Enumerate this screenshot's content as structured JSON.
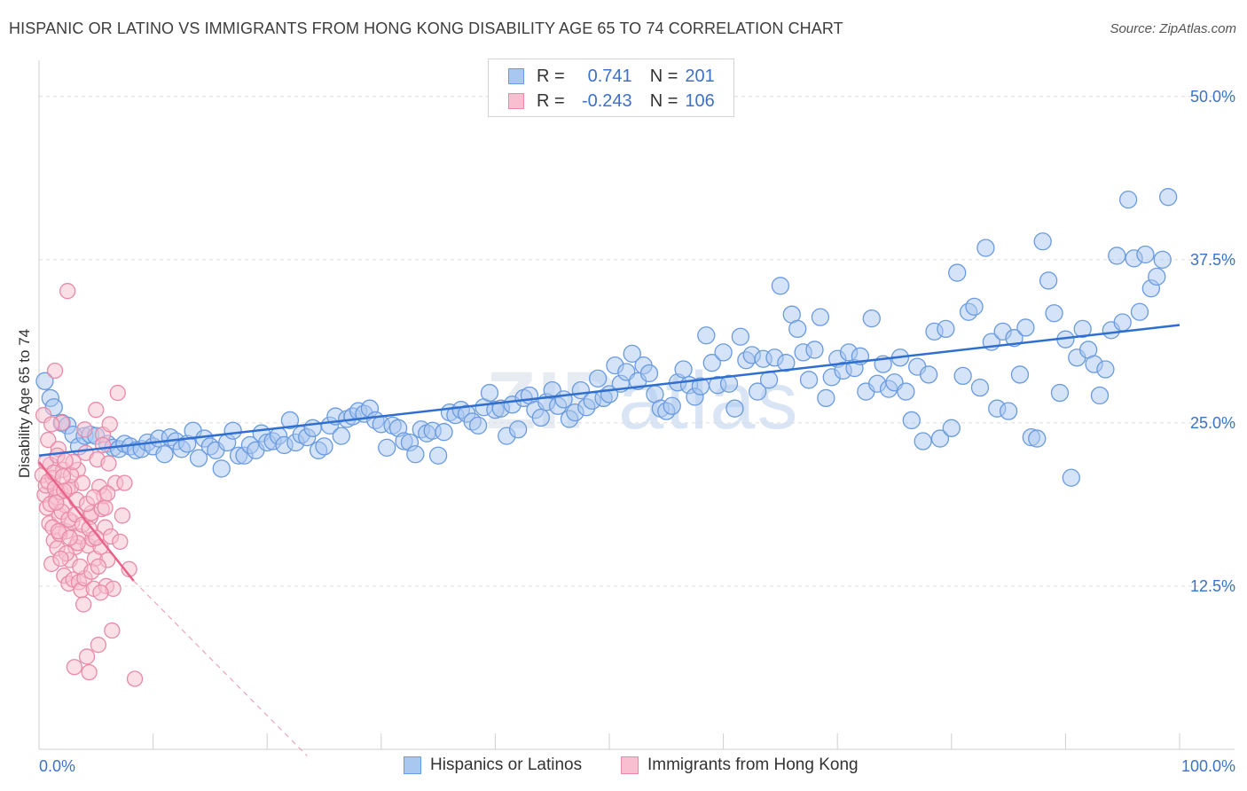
{
  "title": "HISPANIC OR LATINO VS IMMIGRANTS FROM HONG KONG DISABILITY AGE 65 TO 74 CORRELATION CHART",
  "source": "Source: ZipAtlas.com",
  "watermark": {
    "zip": "ZIP",
    "atlas": "atlas"
  },
  "legend": {
    "r_label": "R =",
    "n_label": "N =",
    "rows": [
      {
        "r": "0.741",
        "n": "201",
        "color": "#a9c8f0",
        "border": "#6a9be0"
      },
      {
        "r": "-0.243",
        "n": "106",
        "color": "#f7bfd0",
        "border": "#e88aa8"
      }
    ]
  },
  "bottom_legend": [
    {
      "label": "Hispanics or Latinos"
    },
    {
      "label": "Immigrants from Hong Kong"
    }
  ],
  "chart_data": {
    "type": "scatter",
    "xlabel": "",
    "ylabel": "Disability Age 65 to 74",
    "xlim": [
      0,
      100
    ],
    "ylim": [
      0,
      52.5
    ],
    "y_ticks": [
      12.5,
      25.0,
      37.5,
      50.0
    ],
    "y_tick_labels": [
      "12.5%",
      "25.0%",
      "37.5%",
      "50.0%"
    ],
    "x_tick_labels": [
      "0.0%",
      "100.0%"
    ],
    "grid": true,
    "series": [
      {
        "name": "Hispanics or Latinos",
        "color": "#a9c8f0",
        "stroke": "#6a9be0",
        "trend": {
          "x": [
            0,
            100
          ],
          "y": [
            22.5,
            32.5
          ],
          "color": "#2f6fcf"
        },
        "points": [
          [
            0.5,
            28.2
          ],
          [
            1,
            26.9
          ],
          [
            1.3,
            26.2
          ],
          [
            2,
            25.0
          ],
          [
            2.5,
            24.8
          ],
          [
            3,
            24.1
          ],
          [
            3.5,
            23.2
          ],
          [
            4,
            24.0
          ],
          [
            4.5,
            24.1
          ],
          [
            5,
            24.0
          ],
          [
            6,
            23.4
          ],
          [
            6.5,
            23.1
          ],
          [
            7,
            23.0
          ],
          [
            7.5,
            23.4
          ],
          [
            8,
            23.2
          ],
          [
            8.5,
            22.9
          ],
          [
            9,
            23.0
          ],
          [
            9.5,
            23.5
          ],
          [
            10,
            23.2
          ],
          [
            10.5,
            23.8
          ],
          [
            11,
            22.6
          ],
          [
            11.5,
            23.9
          ],
          [
            12,
            23.6
          ],
          [
            12.5,
            23.0
          ],
          [
            13,
            23.4
          ],
          [
            13.5,
            24.4
          ],
          [
            14,
            22.3
          ],
          [
            14.5,
            23.8
          ],
          [
            15,
            23.2
          ],
          [
            15.5,
            22.9
          ],
          [
            16,
            21.5
          ],
          [
            16.5,
            23.5
          ],
          [
            17,
            24.4
          ],
          [
            17.5,
            22.5
          ],
          [
            18,
            22.5
          ],
          [
            18.5,
            23.3
          ],
          [
            19,
            22.9
          ],
          [
            19.5,
            24.2
          ],
          [
            20,
            23.5
          ],
          [
            20.5,
            23.6
          ],
          [
            21,
            24.0
          ],
          [
            21.5,
            23.3
          ],
          [
            22,
            25.2
          ],
          [
            22.5,
            23.5
          ],
          [
            23,
            24.1
          ],
          [
            23.5,
            23.9
          ],
          [
            24,
            24.6
          ],
          [
            24.5,
            22.9
          ],
          [
            25,
            23.2
          ],
          [
            25.5,
            24.8
          ],
          [
            26,
            25.5
          ],
          [
            26.5,
            24.0
          ],
          [
            27,
            25.3
          ],
          [
            27.5,
            25.5
          ],
          [
            28,
            25.9
          ],
          [
            28.5,
            25.7
          ],
          [
            29,
            26.1
          ],
          [
            29.5,
            25.2
          ],
          [
            30,
            24.9
          ],
          [
            30.5,
            23.1
          ],
          [
            31,
            24.8
          ],
          [
            31.5,
            24.6
          ],
          [
            32,
            23.6
          ],
          [
            32.5,
            23.5
          ],
          [
            33,
            22.6
          ],
          [
            33.5,
            24.5
          ],
          [
            34,
            24.2
          ],
          [
            34.5,
            24.4
          ],
          [
            35,
            22.5
          ],
          [
            35.5,
            24.3
          ],
          [
            36,
            25.8
          ],
          [
            36.5,
            25.6
          ],
          [
            37,
            26.0
          ],
          [
            37.5,
            25.7
          ],
          [
            38,
            25.1
          ],
          [
            38.5,
            24.8
          ],
          [
            39,
            26.2
          ],
          [
            39.5,
            27.3
          ],
          [
            40,
            26.0
          ],
          [
            40.5,
            26.1
          ],
          [
            41,
            24.0
          ],
          [
            41.5,
            26.4
          ],
          [
            42,
            24.5
          ],
          [
            42.5,
            26.9
          ],
          [
            43,
            27.1
          ],
          [
            43.5,
            26.0
          ],
          [
            44,
            25.4
          ],
          [
            44.5,
            26.6
          ],
          [
            45,
            27.5
          ],
          [
            45.5,
            26.3
          ],
          [
            46,
            26.8
          ],
          [
            46.5,
            25.3
          ],
          [
            47,
            25.8
          ],
          [
            47.5,
            27.5
          ],
          [
            48,
            26.2
          ],
          [
            48.5,
            26.7
          ],
          [
            49,
            28.4
          ],
          [
            49.5,
            26.9
          ],
          [
            50,
            27.2
          ],
          [
            50.5,
            29.4
          ],
          [
            51,
            28.0
          ],
          [
            51.5,
            28.9
          ],
          [
            52,
            30.3
          ],
          [
            52.5,
            28.2
          ],
          [
            53,
            29.4
          ],
          [
            53.5,
            28.8
          ],
          [
            54,
            27.2
          ],
          [
            54.5,
            26.1
          ],
          [
            55,
            25.9
          ],
          [
            55.5,
            26.3
          ],
          [
            56,
            28.1
          ],
          [
            56.5,
            29.1
          ],
          [
            57,
            27.9
          ],
          [
            57.5,
            27.0
          ],
          [
            58,
            27.8
          ],
          [
            58.5,
            31.7
          ],
          [
            59,
            29.6
          ],
          [
            59.5,
            27.9
          ],
          [
            60,
            30.4
          ],
          [
            60.5,
            28.0
          ],
          [
            61,
            26.1
          ],
          [
            61.5,
            31.6
          ],
          [
            62,
            29.8
          ],
          [
            62.5,
            30.2
          ],
          [
            63,
            27.4
          ],
          [
            63.5,
            29.9
          ],
          [
            64,
            28.3
          ],
          [
            64.5,
            30.0
          ],
          [
            65,
            35.5
          ],
          [
            65.5,
            29.6
          ],
          [
            66,
            33.3
          ],
          [
            66.5,
            32.2
          ],
          [
            67,
            30.4
          ],
          [
            67.5,
            28.3
          ],
          [
            68,
            30.6
          ],
          [
            68.5,
            33.1
          ],
          [
            69,
            26.9
          ],
          [
            69.5,
            28.5
          ],
          [
            70,
            29.9
          ],
          [
            70.5,
            29.0
          ],
          [
            71,
            30.4
          ],
          [
            71.5,
            29.2
          ],
          [
            72,
            30.1
          ],
          [
            72.5,
            27.4
          ],
          [
            73,
            33.0
          ],
          [
            73.5,
            28.0
          ],
          [
            74,
            29.5
          ],
          [
            74.5,
            27.6
          ],
          [
            75,
            28.1
          ],
          [
            75.5,
            30.0
          ],
          [
            76,
            27.4
          ],
          [
            76.5,
            25.2
          ],
          [
            77,
            29.3
          ],
          [
            77.5,
            23.6
          ],
          [
            78,
            28.7
          ],
          [
            78.5,
            32.0
          ],
          [
            79,
            23.8
          ],
          [
            79.5,
            32.2
          ],
          [
            80,
            24.6
          ],
          [
            80.5,
            36.5
          ],
          [
            81,
            28.6
          ],
          [
            81.5,
            33.5
          ],
          [
            82,
            33.9
          ],
          [
            82.5,
            27.7
          ],
          [
            83,
            38.4
          ],
          [
            83.5,
            31.2
          ],
          [
            84,
            26.1
          ],
          [
            84.5,
            32.0
          ],
          [
            85,
            25.9
          ],
          [
            85.5,
            31.5
          ],
          [
            86,
            28.7
          ],
          [
            86.5,
            32.3
          ],
          [
            87,
            23.9
          ],
          [
            87.5,
            23.8
          ],
          [
            88,
            38.9
          ],
          [
            88.5,
            35.9
          ],
          [
            89,
            33.4
          ],
          [
            89.5,
            27.3
          ],
          [
            90,
            31.4
          ],
          [
            90.5,
            20.8
          ],
          [
            91,
            30.0
          ],
          [
            91.5,
            32.2
          ],
          [
            92,
            30.6
          ],
          [
            92.5,
            29.5
          ],
          [
            93,
            27.1
          ],
          [
            93.5,
            29.1
          ],
          [
            94,
            32.1
          ],
          [
            94.5,
            37.8
          ],
          [
            95,
            32.7
          ],
          [
            95.5,
            42.1
          ],
          [
            96,
            37.6
          ],
          [
            96.5,
            33.5
          ],
          [
            97,
            37.9
          ],
          [
            97.5,
            35.3
          ],
          [
            98,
            36.2
          ],
          [
            98.5,
            37.5
          ],
          [
            99,
            42.3
          ]
        ]
      },
      {
        "name": "Immigrants from Hong Kong",
        "color": "#f7bfd0",
        "stroke": "#e88aa8",
        "trend": {
          "x": [
            0,
            8.3
          ],
          "y": [
            22.0,
            12.9
          ],
          "color": "#e8628a"
        },
        "trend_dashed": {
          "x": [
            8.3,
            23.5
          ],
          "y": [
            12.9,
            -0.5
          ],
          "color": "#e9a7ba"
        },
        "points": [
          [
            0.3,
            21.0
          ],
          [
            0.5,
            19.5
          ],
          [
            0.6,
            20.2
          ],
          [
            0.7,
            18.5
          ],
          [
            0.8,
            23.7
          ],
          [
            0.9,
            17.3
          ],
          [
            1.0,
            21.8
          ],
          [
            1.1,
            14.2
          ],
          [
            1.2,
            20.8
          ],
          [
            1.3,
            16.0
          ],
          [
            1.4,
            29.0
          ],
          [
            1.5,
            19.3
          ],
          [
            1.6,
            15.4
          ],
          [
            1.7,
            23.0
          ],
          [
            1.8,
            17.9
          ],
          [
            1.9,
            19.7
          ],
          [
            2.0,
            25.0
          ],
          [
            2.1,
            21.4
          ],
          [
            2.2,
            13.3
          ],
          [
            2.3,
            18.7
          ],
          [
            2.4,
            16.7
          ],
          [
            2.5,
            19.9
          ],
          [
            2.6,
            12.7
          ],
          [
            2.7,
            14.5
          ],
          [
            2.8,
            20.1
          ],
          [
            2.9,
            17.4
          ],
          [
            3.0,
            13.0
          ],
          [
            3.1,
            6.3
          ],
          [
            3.2,
            15.5
          ],
          [
            3.3,
            19.1
          ],
          [
            3.4,
            21.4
          ],
          [
            3.5,
            12.8
          ],
          [
            3.6,
            16.3
          ],
          [
            3.7,
            12.2
          ],
          [
            3.8,
            20.4
          ],
          [
            3.9,
            11.1
          ],
          [
            4.0,
            13.1
          ],
          [
            4.1,
            22.7
          ],
          [
            4.2,
            7.1
          ],
          [
            4.3,
            15.6
          ],
          [
            4.4,
            5.9
          ],
          [
            4.5,
            17.8
          ],
          [
            4.6,
            18.1
          ],
          [
            4.7,
            16.1
          ],
          [
            4.8,
            12.3
          ],
          [
            4.9,
            14.6
          ],
          [
            5.0,
            26.0
          ],
          [
            5.1,
            22.2
          ],
          [
            5.2,
            8.0
          ],
          [
            5.3,
            20.1
          ],
          [
            5.4,
            15.5
          ],
          [
            5.5,
            18.4
          ],
          [
            5.6,
            24.1
          ],
          [
            5.7,
            19.4
          ],
          [
            5.8,
            17.0
          ],
          [
            5.9,
            12.5
          ],
          [
            6.0,
            14.5
          ],
          [
            6.1,
            21.9
          ],
          [
            6.2,
            24.9
          ],
          [
            6.3,
            16.3
          ],
          [
            6.4,
            9.1
          ],
          [
            6.5,
            12.3
          ],
          [
            6.7,
            20.4
          ],
          [
            6.9,
            27.3
          ],
          [
            7.1,
            15.9
          ],
          [
            7.3,
            17.9
          ],
          [
            7.5,
            20.4
          ],
          [
            7.9,
            13.8
          ],
          [
            8.4,
            5.4
          ],
          [
            0.4,
            25.6
          ],
          [
            0.6,
            22.0
          ],
          [
            0.8,
            20.5
          ],
          [
            1.0,
            18.8
          ],
          [
            1.2,
            17.0
          ],
          [
            1.4,
            20.0
          ],
          [
            1.6,
            22.5
          ],
          [
            1.8,
            16.5
          ],
          [
            2.0,
            18.2
          ],
          [
            2.2,
            19.8
          ],
          [
            2.4,
            15.0
          ],
          [
            2.6,
            17.6
          ],
          [
            2.8,
            21.0
          ],
          [
            3.0,
            22.0
          ],
          [
            3.2,
            18.0
          ],
          [
            3.4,
            15.8
          ],
          [
            3.6,
            14.0
          ],
          [
            3.8,
            17.2
          ],
          [
            4.0,
            24.5
          ],
          [
            4.2,
            18.8
          ],
          [
            4.4,
            16.9
          ],
          [
            4.6,
            13.6
          ],
          [
            4.8,
            19.3
          ],
          [
            5.0,
            16.2
          ],
          [
            5.2,
            14.0
          ],
          [
            5.4,
            12.0
          ],
          [
            5.6,
            23.3
          ],
          [
            5.8,
            18.5
          ],
          [
            6.0,
            19.6
          ],
          [
            1.1,
            24.9
          ],
          [
            1.3,
            21.2
          ],
          [
            1.5,
            18.9
          ],
          [
            1.7,
            16.7
          ],
          [
            1.9,
            14.6
          ],
          [
            2.1,
            20.9
          ],
          [
            2.3,
            22.1
          ],
          [
            2.5,
            35.1
          ],
          [
            2.7,
            16.2
          ]
        ]
      }
    ]
  }
}
